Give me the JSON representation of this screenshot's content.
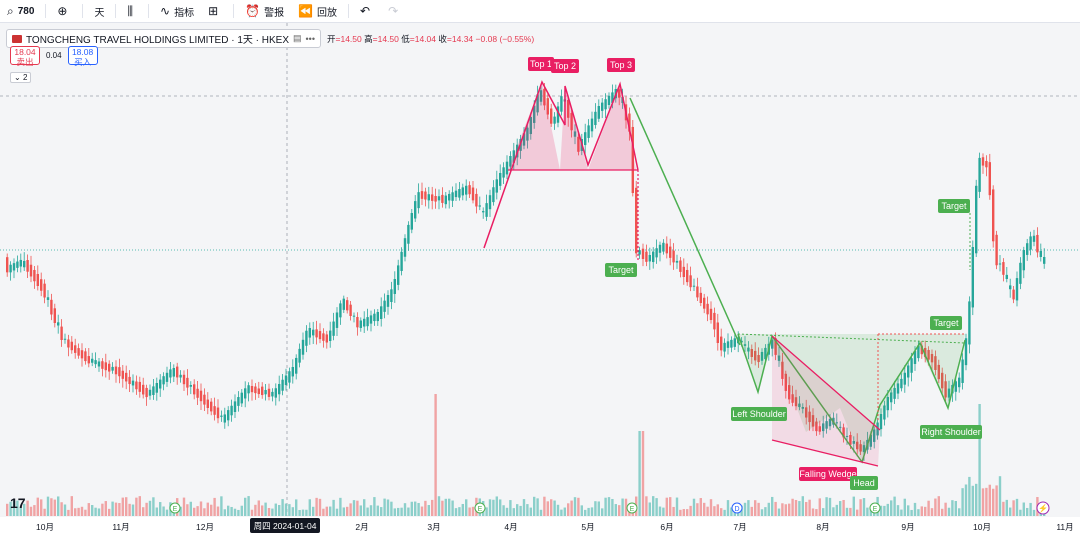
{
  "toolbar": {
    "symbol": "780",
    "interval": "天",
    "indicators": "指标",
    "alerts": "警报",
    "replay": "回放"
  },
  "legend": {
    "title": "TONGCHENG TRAVEL HOLDINGS LIMITED · 1天 · HKEX",
    "more": "•••",
    "open_label": "开",
    "open": "=14.50",
    "high_label": "高",
    "high": "=14.50",
    "low_label": "低",
    "low": "=14.04",
    "close_label": "收",
    "close": "=14.34",
    "change": "−0.08",
    "change_pct": "(−0.55%)"
  },
  "trade": {
    "sell_price": "18.04",
    "sell_label": "卖出",
    "spread": "0.04",
    "buy_price": "18.08",
    "buy_label": "买入"
  },
  "collapse_label": "2",
  "x_axis": {
    "months": [
      "10月",
      "11月",
      "12月",
      "2月",
      "3月",
      "4月",
      "5月",
      "6月",
      "7月",
      "8月",
      "9月",
      "10月",
      "11月"
    ],
    "crosshair_date": "周四 2024-01-04"
  },
  "annotations": {
    "top1": "Top 1",
    "top2": "Top 2",
    "top3": "Top 3",
    "target_left": "Target",
    "left_shoulder": "Left Shoulder",
    "falling_wedge": "Falling Wedge",
    "head": "Head",
    "right_shoulder": "Right Shoulder",
    "target_mid": "Target",
    "target_right": "Target"
  },
  "event_markers": [
    "E",
    "E",
    "E",
    "D",
    "E"
  ],
  "colors": {
    "up": "#26a69a",
    "down": "#ef5350",
    "pattern_red": "#e91e63",
    "pattern_green": "#4caf50"
  }
}
